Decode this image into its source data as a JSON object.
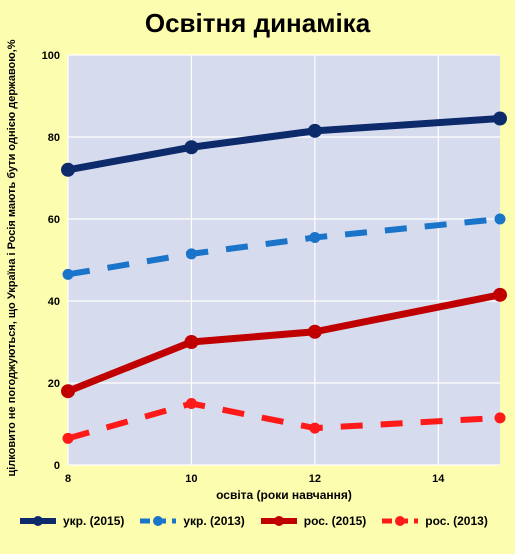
{
  "chart_data": {
    "type": "line",
    "title": "Освітня динаміка",
    "xlabel": "освіта (роки навчання)",
    "ylabel": "цілковито не погоджуються, що Україна і Росія мають бути однією державою,%",
    "xlim": [
      8,
      15
    ],
    "ylim": [
      0,
      100
    ],
    "x_ticks": [
      8,
      10,
      12,
      14
    ],
    "y_ticks": [
      0,
      20,
      40,
      60,
      80,
      100
    ],
    "grid": true,
    "legend_position": "bottom",
    "series": [
      {
        "name": "укр. (2015)",
        "color": "#0d2a6b",
        "dash": "solid",
        "x": [
          8,
          10,
          12,
          15
        ],
        "values": [
          72,
          77.5,
          81.5,
          84.5
        ]
      },
      {
        "name": "укр. (2013)",
        "color": "#1a74c9",
        "dash": "dashed",
        "x": [
          8,
          10,
          12,
          15
        ],
        "values": [
          46.5,
          51.5,
          55.5,
          60
        ]
      },
      {
        "name": "рос. (2015)",
        "color": "#c00000",
        "dash": "solid",
        "x": [
          8,
          10,
          12,
          15
        ],
        "values": [
          18,
          30,
          32.5,
          41.5
        ]
      },
      {
        "name": "рос. (2013)",
        "color": "#ff1a1a",
        "dash": "dashed",
        "x": [
          8,
          10,
          12,
          15
        ],
        "values": [
          6.5,
          15,
          9,
          11.5
        ]
      }
    ]
  }
}
